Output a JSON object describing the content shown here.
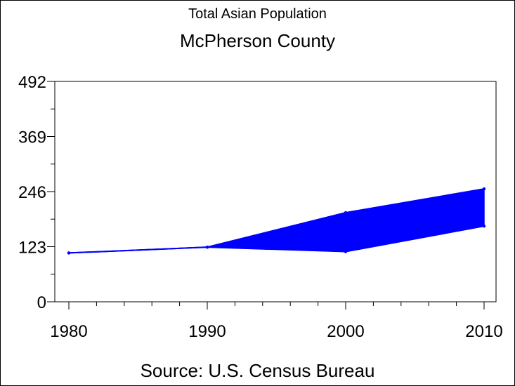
{
  "chart_data": {
    "type": "area",
    "subtitle": "Total Asian Population",
    "title": "McPherson County",
    "source": "Source: U.S. Census Bureau",
    "x": [
      "1980",
      "1990",
      "2000",
      "2010"
    ],
    "yticks": [
      "0",
      "123",
      "246",
      "369",
      "492"
    ],
    "ylim": [
      0,
      492
    ],
    "series": [
      {
        "values": [
          109,
          122,
          199,
          252
        ]
      },
      {
        "values": [
          109,
          122,
          112,
          169
        ]
      }
    ],
    "grid": false,
    "color": "#0000ff"
  }
}
